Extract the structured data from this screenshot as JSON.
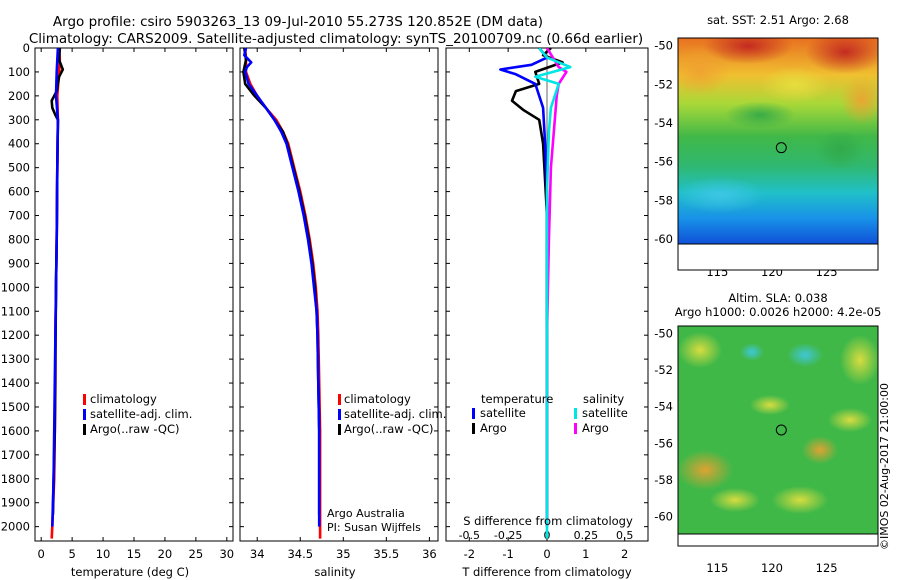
{
  "title": {
    "line1": "Argo profile: csiro 5903263_13 09-Jul-2010 55.273S 120.852E (DM data)",
    "line2": "Climatology: CARS2009. Satellite-adjusted climatology: synTS_20100709.nc (0.66d earlier)"
  },
  "colors": {
    "clim": "#ff0000",
    "sat": "#0000ff",
    "argo": "#000000",
    "sat_s": "#00e5e5",
    "argo_s": "#ff00ff"
  },
  "chart_data": [
    {
      "type": "line",
      "id": "temperature",
      "xlabel": "temperature (deg C)",
      "ylabel": "",
      "xlim": [
        -1,
        31
      ],
      "ylim": [
        2060,
        0
      ],
      "inverted_y": true,
      "xticks": [
        0,
        5,
        10,
        15,
        20,
        25,
        30
      ],
      "yticks": [
        0,
        100,
        200,
        300,
        400,
        500,
        600,
        700,
        800,
        900,
        1000,
        1100,
        1200,
        1300,
        1400,
        1500,
        1600,
        1700,
        1800,
        1900,
        2000
      ],
      "legend": [
        "climatology",
        "satellite-adj. clim.",
        "Argo(..raw -QC)"
      ],
      "series": [
        {
          "name": "climatology",
          "color": "clim",
          "points": [
            [
              2.9,
              0
            ],
            [
              3.0,
              50
            ],
            [
              2.9,
              100
            ],
            [
              2.6,
              200
            ],
            [
              2.7,
              300
            ],
            [
              2.6,
              500
            ],
            [
              2.5,
              800
            ],
            [
              2.4,
              1000
            ],
            [
              2.3,
              1200
            ],
            [
              2.3,
              1400
            ],
            [
              2.2,
              1600
            ],
            [
              2.1,
              1800
            ],
            [
              1.8,
              2000
            ],
            [
              1.7,
              2050
            ]
          ]
        },
        {
          "name": "Argo(..raw -QC)",
          "color": "argo",
          "points": [
            [
              3.0,
              0
            ],
            [
              2.9,
              50
            ],
            [
              3.5,
              90
            ],
            [
              2.9,
              120
            ],
            [
              2.5,
              180
            ],
            [
              1.7,
              220
            ],
            [
              1.8,
              250
            ],
            [
              2.3,
              280
            ],
            [
              2.7,
              300
            ],
            [
              2.6,
              500
            ],
            [
              2.5,
              800
            ],
            [
              2.4,
              1000
            ],
            [
              2.3,
              1300
            ],
            [
              2.2,
              1600
            ],
            [
              2.0,
              1800
            ],
            [
              1.9,
              1950
            ]
          ]
        },
        {
          "name": "satellite-adj. clim.",
          "color": "sat",
          "points": [
            [
              2.7,
              0
            ],
            [
              2.6,
              50
            ],
            [
              2.5,
              100
            ],
            [
              2.4,
              200
            ],
            [
              2.7,
              300
            ],
            [
              2.6,
              500
            ],
            [
              2.5,
              800
            ],
            [
              2.4,
              1000
            ],
            [
              2.3,
              1200
            ],
            [
              2.2,
              1400
            ],
            [
              2.1,
              1600
            ],
            [
              2.0,
              1800
            ],
            [
              1.8,
              2000
            ]
          ]
        }
      ]
    },
    {
      "type": "line",
      "id": "salinity",
      "xlabel": "salinity",
      "xlim": [
        33.8,
        36.1
      ],
      "ylim": [
        2060,
        0
      ],
      "inverted_y": true,
      "xticks": [
        34,
        34.5,
        35,
        35.5,
        36
      ],
      "legend": [
        "climatology",
        "satellite-adj. clim.",
        "Argo(..raw -QC)"
      ],
      "annotation": [
        "Argo Australia",
        "PI: Susan Wijffels"
      ],
      "series": [
        {
          "name": "climatology",
          "color": "clim",
          "points": [
            [
              33.86,
              0
            ],
            [
              33.87,
              50
            ],
            [
              33.87,
              100
            ],
            [
              33.92,
              150
            ],
            [
              34.0,
              200
            ],
            [
              34.1,
              250
            ],
            [
              34.22,
              300
            ],
            [
              34.3,
              350
            ],
            [
              34.36,
              400
            ],
            [
              34.43,
              500
            ],
            [
              34.5,
              600
            ],
            [
              34.56,
              700
            ],
            [
              34.61,
              800
            ],
            [
              34.65,
              900
            ],
            [
              34.68,
              1000
            ],
            [
              34.7,
              1100
            ],
            [
              34.71,
              1200
            ],
            [
              34.72,
              1400
            ],
            [
              34.73,
              1600
            ],
            [
              34.73,
              1800
            ],
            [
              34.73,
              2050
            ]
          ]
        },
        {
          "name": "Argo(..raw -QC)",
          "color": "argo",
          "points": [
            [
              33.85,
              0
            ],
            [
              33.87,
              50
            ],
            [
              33.84,
              100
            ],
            [
              33.86,
              150
            ],
            [
              33.97,
              200
            ],
            [
              34.1,
              250
            ],
            [
              34.2,
              300
            ],
            [
              34.3,
              350
            ],
            [
              34.35,
              400
            ],
            [
              34.42,
              500
            ],
            [
              34.49,
              600
            ],
            [
              34.55,
              700
            ],
            [
              34.6,
              800
            ],
            [
              34.64,
              900
            ],
            [
              34.67,
              1000
            ],
            [
              34.69,
              1100
            ],
            [
              34.7,
              1200
            ],
            [
              34.71,
              1400
            ],
            [
              34.72,
              1600
            ],
            [
              34.72,
              1800
            ],
            [
              34.72,
              1950
            ]
          ]
        },
        {
          "name": "satellite-adj. clim.",
          "color": "sat",
          "points": [
            [
              33.87,
              0
            ],
            [
              33.85,
              30
            ],
            [
              33.93,
              60
            ],
            [
              33.88,
              80
            ],
            [
              33.86,
              100
            ],
            [
              33.9,
              150
            ],
            [
              34.0,
              200
            ],
            [
              34.1,
              250
            ],
            [
              34.2,
              300
            ],
            [
              34.28,
              350
            ],
            [
              34.34,
              400
            ],
            [
              34.41,
              500
            ],
            [
              34.48,
              600
            ],
            [
              34.54,
              700
            ],
            [
              34.59,
              800
            ],
            [
              34.63,
              900
            ],
            [
              34.66,
              1000
            ],
            [
              34.69,
              1100
            ],
            [
              34.7,
              1200
            ],
            [
              34.71,
              1400
            ],
            [
              34.72,
              1600
            ],
            [
              34.72,
              1800
            ],
            [
              34.72,
              2000
            ]
          ]
        }
      ]
    },
    {
      "type": "line",
      "id": "difference",
      "xlabel": "T difference from climatology",
      "top_label": "S difference from climatology",
      "xlim": [
        -2.6,
        2.6
      ],
      "ylim": [
        2060,
        0
      ],
      "inverted_y": true,
      "xticks": [
        -2,
        -1,
        0,
        1,
        2
      ],
      "top_ticks": [
        {
          "label": "-0.5",
          "value": -2
        },
        {
          "label": "-0.25",
          "value": -1
        },
        {
          "label": "0",
          "value": 0
        },
        {
          "label": "0.25",
          "value": 1
        },
        {
          "label": "0.5",
          "value": 2
        }
      ],
      "legend_headers": [
        "temperature",
        "salinity"
      ],
      "legend_t": [
        "satellite",
        "Argo"
      ],
      "legend_s": [
        "satellite",
        "Argo"
      ],
      "series": [
        {
          "name": "T Argo",
          "color": "argo",
          "points": [
            [
              0.1,
              0
            ],
            [
              -0.1,
              30
            ],
            [
              0.4,
              60
            ],
            [
              -0.3,
              100
            ],
            [
              -0.2,
              150
            ],
            [
              -0.8,
              180
            ],
            [
              -0.9,
              220
            ],
            [
              -0.6,
              260
            ],
            [
              -0.2,
              300
            ],
            [
              -0.1,
              400
            ],
            [
              0,
              700
            ],
            [
              0,
              1000
            ],
            [
              0,
              2000
            ]
          ]
        },
        {
          "name": "T satellite",
          "color": "sat",
          "points": [
            [
              -0.2,
              0
            ],
            [
              0,
              40
            ],
            [
              -0.4,
              70
            ],
            [
              -1.2,
              90
            ],
            [
              -0.8,
              110
            ],
            [
              -0.3,
              150
            ],
            [
              -0.1,
              250
            ],
            [
              -0.05,
              400
            ],
            [
              0,
              600
            ],
            [
              0,
              1000
            ],
            [
              0,
              2000
            ]
          ]
        },
        {
          "name": "S Argo",
          "color": "argo_s",
          "points": [
            [
              0,
              0
            ],
            [
              0.3,
              80
            ],
            [
              0.5,
              100
            ],
            [
              0.3,
              150
            ],
            [
              0.25,
              200
            ],
            [
              0.2,
              300
            ],
            [
              0.1,
              500
            ],
            [
              0.05,
              800
            ],
            [
              0,
              1200
            ],
            [
              0,
              2000
            ]
          ]
        },
        {
          "name": "S satellite",
          "color": "sat_s",
          "points": [
            [
              -0.2,
              0
            ],
            [
              0,
              40
            ],
            [
              0.6,
              80
            ],
            [
              -0.3,
              120
            ],
            [
              0.3,
              150
            ],
            [
              0.1,
              250
            ],
            [
              0.05,
              350
            ],
            [
              0,
              600
            ],
            [
              0,
              900
            ],
            [
              0,
              1300
            ],
            [
              0,
              2050
            ]
          ]
        }
      ]
    },
    {
      "type": "heatmap",
      "id": "sst_map",
      "title": "sat. SST: 2.51 Argo: 2.68",
      "xticks": [
        115,
        120,
        125
      ],
      "yticks": [
        -50,
        -52,
        -54,
        -56,
        -58,
        -60
      ],
      "xlim": [
        111.4,
        129.7
      ],
      "ylim": [
        -61.6,
        -49.6
      ],
      "marker": [
        120.852,
        -55.273
      ]
    },
    {
      "type": "heatmap",
      "id": "sla_map",
      "title_line1": "Altim. SLA: 0.038",
      "title_line2": "Argo h1000: 0.0026 h2000: 4.2e-05",
      "xticks": [
        115,
        120,
        125
      ],
      "yticks": [
        -50,
        -52,
        -54,
        -56,
        -58,
        -60
      ],
      "xlim": [
        111.4,
        129.7
      ],
      "ylim": [
        -61.6,
        -49.6
      ],
      "marker": [
        120.852,
        -55.273
      ]
    }
  ],
  "credit": "©IMOS 02-Aug-2017 21:00:00"
}
